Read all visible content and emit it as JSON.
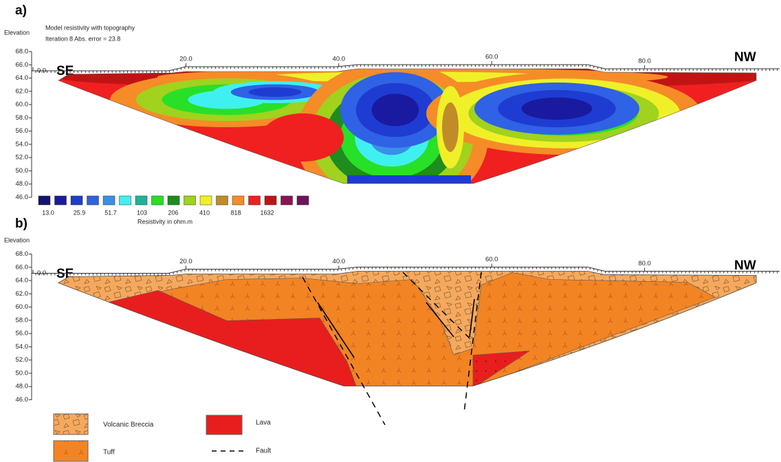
{
  "panel_a": {
    "label": "a)",
    "y_axis_title": "Elevation",
    "title": "Model resistivity with topography",
    "subtitle": "Iteration 8 Abs. error = 23.8",
    "left_label": "SE",
    "right_label": "NW",
    "yticks": [
      {
        "value": 68,
        "label": "68.0"
      },
      {
        "value": 66,
        "label": "66.0"
      },
      {
        "value": 64,
        "label": "64.0"
      },
      {
        "value": 62,
        "label": "62.0"
      },
      {
        "value": 60,
        "label": "60.0"
      },
      {
        "value": 58,
        "label": "58.0"
      },
      {
        "value": 56,
        "label": "56.0"
      },
      {
        "value": 54,
        "label": "54.0"
      },
      {
        "value": 52,
        "label": "52.0"
      },
      {
        "value": 50,
        "label": "50.0"
      },
      {
        "value": 48,
        "label": "48.0"
      },
      {
        "value": 46,
        "label": "46.0"
      }
    ],
    "xticks": [
      {
        "value": 0,
        "label": "0.0"
      },
      {
        "value": 20,
        "label": "20.0"
      },
      {
        "value": 40,
        "label": "40.0"
      },
      {
        "value": 60,
        "label": "60.0"
      },
      {
        "value": 80,
        "label": "80.0"
      }
    ],
    "legend_colors": [
      "#14146e",
      "#1a1aa0",
      "#1e3cd2",
      "#2f62e4",
      "#3c8ee8",
      "#40f0f0",
      "#20b496",
      "#28e028",
      "#1e8c1e",
      "#a0d21e",
      "#f0f028",
      "#c08c28",
      "#f58c28",
      "#f02020",
      "#c01414",
      "#8c1450",
      "#6e145a"
    ],
    "legend_labels": [
      "13.0",
      "25.9",
      "51.7",
      "103",
      "206",
      "410",
      "818",
      "1632"
    ],
    "legend_title": "Resistivity in ohm.m"
  },
  "panel_b": {
    "label": "b)",
    "y_axis_title": "Elevation",
    "left_label": "SE",
    "right_label": "NW",
    "yticks": [
      {
        "value": 68,
        "label": "68.0"
      },
      {
        "value": 66,
        "label": "66.0"
      },
      {
        "value": 64,
        "label": "64.0"
      },
      {
        "value": 62,
        "label": "62.0"
      },
      {
        "value": 60,
        "label": "60.0"
      },
      {
        "value": 58,
        "label": "58.0"
      },
      {
        "value": 56,
        "label": "56.0"
      },
      {
        "value": 54,
        "label": "54.0"
      },
      {
        "value": 52,
        "label": "52.0"
      },
      {
        "value": 50,
        "label": "50.0"
      },
      {
        "value": 48,
        "label": "48.0"
      },
      {
        "value": 46,
        "label": "46.0"
      }
    ],
    "xticks": [
      {
        "value": 0,
        "label": "0.0"
      },
      {
        "value": 20,
        "label": "20.0"
      },
      {
        "value": 40,
        "label": "40.0"
      },
      {
        "value": 60,
        "label": "60.0"
      },
      {
        "value": 80,
        "label": "80.0"
      }
    ],
    "legend": [
      {
        "label": "Volcanic Breccia",
        "color": "#f5a95e"
      },
      {
        "label": "Tuff",
        "color": "#f28424"
      },
      {
        "label": "Lava",
        "color": "#e81e1e"
      },
      {
        "label": "Fault"
      }
    ]
  }
}
